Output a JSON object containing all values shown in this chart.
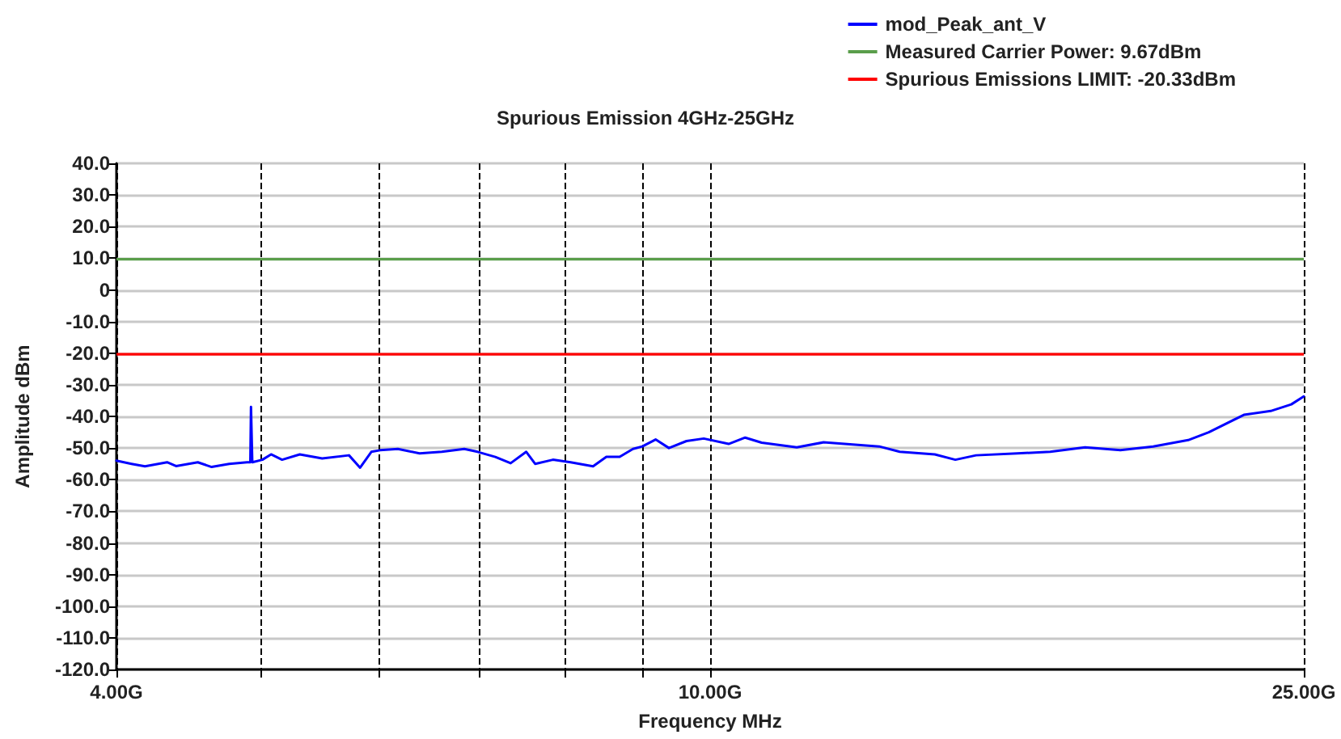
{
  "chart_data": {
    "type": "line",
    "title": "Spurious Emission 4GHz-25GHz",
    "xlabel": "Frequency MHz",
    "ylabel": "Amplitude dBm",
    "log": "x",
    "grid": true,
    "line_style": "solid",
    "marker": "none",
    "legend": "top right",
    "xlim": [
      4,
      25
    ],
    "xticks": [
      {
        "value": 4,
        "label": "4.00G"
      },
      {
        "value": 5,
        "label": null
      },
      {
        "value": 6,
        "label": null
      },
      {
        "value": 7,
        "label": null
      },
      {
        "value": 8,
        "label": null
      },
      {
        "value": 9,
        "label": null
      },
      {
        "value": 10,
        "label": "10.00G"
      },
      {
        "value": 25,
        "label": "25.00G"
      }
    ],
    "ylim": [
      -120,
      40
    ],
    "yticks": [
      {
        "value": -120,
        "label": "-120.0"
      },
      {
        "value": -110,
        "label": "-110.0"
      },
      {
        "value": -100,
        "label": "-100.0"
      },
      {
        "value": -90,
        "label": "-90.0"
      },
      {
        "value": -80,
        "label": "-80.0"
      },
      {
        "value": -70,
        "label": "-70.0"
      },
      {
        "value": -60,
        "label": "-60.0"
      },
      {
        "value": -50,
        "label": "-50.0"
      },
      {
        "value": -40,
        "label": "-40.0"
      },
      {
        "value": -30,
        "label": "-30.0"
      },
      {
        "value": -20,
        "label": "-20.0"
      },
      {
        "value": -10,
        "label": "-10.0"
      },
      0,
      {
        "value": 10,
        "label": "10.0"
      },
      {
        "value": 20,
        "label": "20.0"
      },
      {
        "value": 30,
        "label": "30.0"
      },
      {
        "value": 40,
        "label": "40.0"
      }
    ],
    "series": [
      {
        "name": "mod_Peak_ant_V",
        "color": "#0000ff",
        "x": [
          4.0,
          4.094,
          4.18,
          4.325,
          4.385,
          4.535,
          4.633,
          4.76,
          4.893,
          4.918,
          4.923,
          4.933,
          5.01,
          5.078,
          5.165,
          5.308,
          5.495,
          5.727,
          5.826,
          5.928,
          6.009,
          6.176,
          6.386,
          6.609,
          6.842,
          6.984,
          7.178,
          7.35,
          7.529,
          7.633,
          7.845,
          8.063,
          8.347,
          8.52,
          8.697,
          8.877,
          9.007,
          9.193,
          9.384,
          9.641,
          9.902,
          10.29,
          10.556,
          10.828,
          11.431,
          11.912,
          12.981,
          13.4,
          14.145,
          14.601,
          15.075,
          16.066,
          16.904,
          17.838,
          18.837,
          19.815,
          20.914,
          21.59,
          22.793,
          23.755,
          24.523,
          25.0
        ],
        "values": [
          -54,
          -55,
          -55.8,
          -54.5,
          -55.7,
          -54.5,
          -56,
          -55,
          -54.5,
          -54.5,
          -37,
          -54.5,
          -53.7,
          -52,
          -53.7,
          -52,
          -53.3,
          -52.3,
          -56.2,
          -51.2,
          -50.7,
          -50.3,
          -51.7,
          -51.2,
          -50.3,
          -51.2,
          -52.8,
          -54.8,
          -51.2,
          -55,
          -53.7,
          -54.5,
          -55.8,
          -52.8,
          -52.8,
          -50.3,
          -49.5,
          -47.3,
          -50,
          -47.8,
          -47,
          -48.7,
          -46.7,
          -48.3,
          -49.8,
          -48.2,
          -49.5,
          -51.2,
          -52,
          -53.7,
          -52.3,
          -51.7,
          -51.2,
          -49.8,
          -50.7,
          -49.5,
          -47.5,
          -45,
          -39.5,
          -38.3,
          -36.2,
          -33.7
        ]
      }
    ],
    "ref_lines": [
      {
        "axis": "y",
        "value": 9.67,
        "label": "Measured Carrier Power: 9.67dBm",
        "color": "#5a9e4b"
      },
      {
        "axis": "y",
        "value": -20.33,
        "label": "Spurious Emissions LIMIT: -20.33dBm",
        "color": "#ff0000"
      }
    ]
  }
}
